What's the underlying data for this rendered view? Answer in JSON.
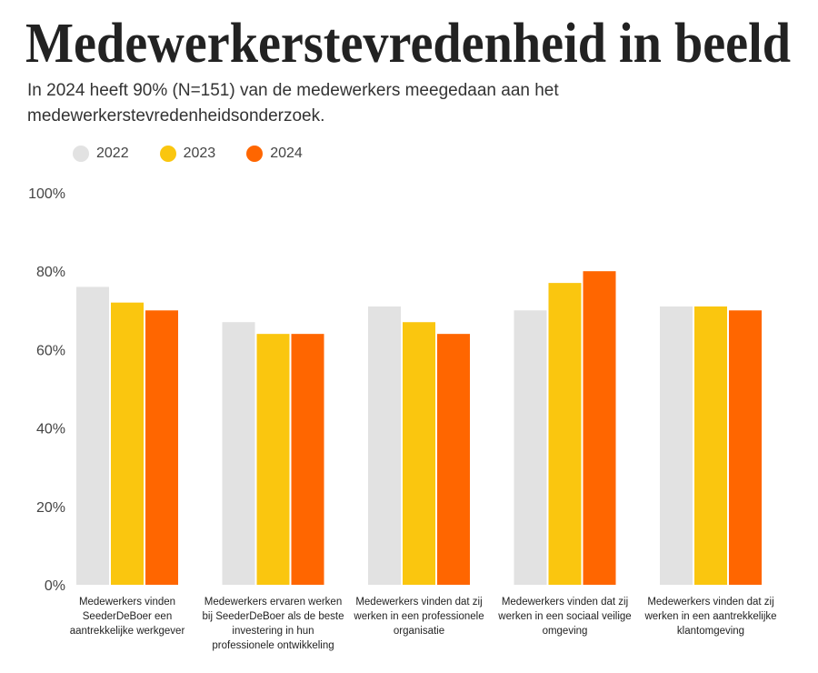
{
  "title": "Medewerkerstevredenheid in beeld",
  "subtitle": "In 2024 heeft 90% (N=151) van de medewerkers meegedaan aan het medewerkerstevredenheidsonderzoek.",
  "chart_data": {
    "type": "bar",
    "categories": [
      "Medewerkers vinden SeederDeBoer een aantrekkelijke werkgever",
      "Medewerkers ervaren werken bij SeederDeBoer als de beste investering in hun professionele ontwikkeling",
      "Medewerkers vinden dat zij werken in een professionele organisatie",
      "Medewerkers vinden dat zij werken in een sociaal veilige omgeving",
      "Medewerkers vinden dat zij werken in een aantrekkelijke klantomgeving"
    ],
    "series": [
      {
        "name": "2022",
        "color": "#e2e2e2",
        "values": [
          76,
          67,
          71,
          70,
          71
        ]
      },
      {
        "name": "2023",
        "color": "#fac60f",
        "values": [
          72,
          64,
          67,
          77,
          71
        ]
      },
      {
        "name": "2024",
        "color": "#ff6600",
        "values": [
          70,
          64,
          64,
          80,
          70
        ]
      }
    ],
    "yticks": [
      "0%",
      "20%",
      "40%",
      "60%",
      "80%",
      "100%"
    ],
    "ylim": [
      0,
      100
    ],
    "grid": false,
    "legend": "top-left"
  }
}
